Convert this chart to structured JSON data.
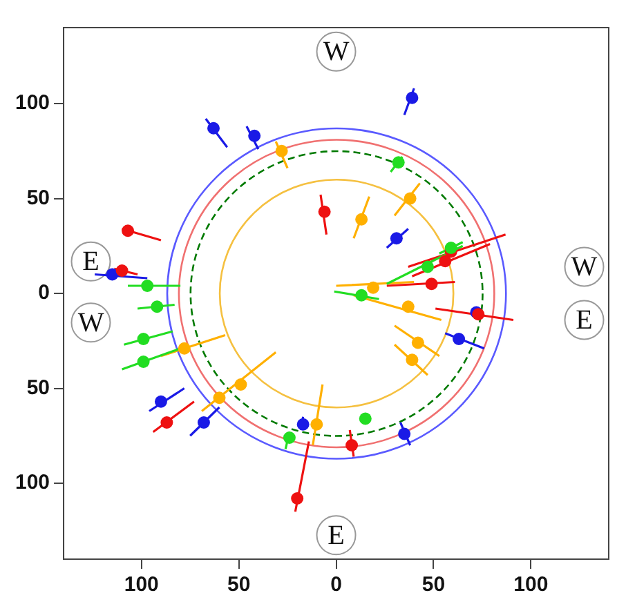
{
  "chart_data": {
    "type": "scatter",
    "xlim": [
      -140,
      140
    ],
    "ylim": [
      -140,
      140
    ],
    "xticks": [
      {
        "value": -100,
        "label": "100"
      },
      {
        "value": -50,
        "label": "50"
      },
      0,
      50,
      100
    ],
    "yticks": [
      {
        "value": -100,
        "label": "100"
      },
      {
        "value": -50,
        "label": "50"
      },
      0,
      50,
      100
    ],
    "grid": false,
    "legend": false,
    "marker": "circle",
    "annotations": [
      "W",
      "E",
      "W",
      "W",
      "E",
      "E"
    ],
    "series": [
      {
        "type": "line",
        "marker": "none",
        "color": "#1a1ae6",
        "line_style": "solid",
        "x": [
          -67,
          -56,
          null,
          -46,
          -40,
          null,
          40,
          35,
          null,
          37,
          26,
          null,
          -124,
          -97,
          null,
          56,
          76,
          null,
          33,
          38,
          null,
          -17,
          -18,
          null,
          -75,
          -60,
          null,
          -96,
          -78
        ],
        "values": [
          92,
          77,
          null,
          88,
          76,
          null,
          108,
          94,
          null,
          34,
          24,
          null,
          10,
          8,
          null,
          -21,
          -29,
          null,
          -68,
          -80,
          null,
          -65,
          -72,
          null,
          -75,
          -60,
          null,
          -62,
          -50
        ]
      },
      {
        "type": "line",
        "marker": "none",
        "color": "#ee1111",
        "line_style": "solid",
        "x": [
          -8,
          -5,
          null,
          -110,
          -90,
          null,
          -114,
          -102,
          null,
          37,
          87,
          null,
          39,
          79,
          null,
          26,
          61,
          null,
          51,
          91,
          null,
          7,
          9,
          null,
          -21,
          -14,
          null,
          -94,
          -73
        ],
        "values": [
          52,
          31,
          null,
          34,
          28,
          null,
          13,
          10,
          null,
          14,
          31,
          null,
          9,
          26,
          null,
          4,
          6,
          null,
          -8,
          -14,
          null,
          -72,
          -86,
          null,
          -115,
          -78,
          null,
          -73,
          -57
        ]
      },
      {
        "type": "line",
        "marker": "none",
        "color": "#ffb000",
        "line_style": "solid",
        "x": [
          -31,
          -25,
          null,
          43,
          30,
          null,
          17,
          9,
          null,
          0,
          40,
          null,
          9,
          54,
          null,
          30,
          53,
          null,
          30,
          47,
          null,
          -7,
          -12,
          null,
          -31,
          -69,
          null,
          -90,
          -57
        ],
        "values": [
          80,
          66,
          null,
          58,
          41,
          null,
          51,
          29,
          null,
          4,
          6,
          null,
          -1,
          -14,
          null,
          -17,
          -33,
          null,
          -27,
          -43,
          null,
          -48,
          -80,
          null,
          -31,
          -62,
          null,
          -33,
          -22
        ]
      },
      {
        "type": "line",
        "marker": "none",
        "color": "#22dd22",
        "line_style": "solid",
        "x": [
          34,
          28,
          null,
          53,
          65,
          null,
          26,
          65,
          null,
          -1,
          22,
          null,
          -107,
          -80,
          null,
          -102,
          -83,
          null,
          -109,
          -84,
          null,
          -110,
          -80,
          null,
          -24,
          -26
        ],
        "values": [
          72,
          64,
          null,
          21,
          27,
          null,
          5,
          25,
          null,
          1,
          -3,
          null,
          4,
          4,
          null,
          -8,
          -6,
          null,
          -27,
          -20,
          null,
          -40,
          -29,
          null,
          -73,
          -82
        ]
      },
      {
        "type": "scatter",
        "color": "#1a1ae6",
        "x": [
          -63,
          -42,
          39,
          31,
          -115,
          72,
          63,
          35,
          -17,
          -68,
          -90
        ],
        "values": [
          87,
          83,
          103,
          29,
          10,
          -10,
          -24,
          -74,
          -69,
          -68,
          -57
        ]
      },
      {
        "type": "scatter",
        "color": "#ee1111",
        "x": [
          -6,
          -107,
          -110,
          59,
          56,
          49,
          73,
          8,
          -20,
          -87
        ],
        "values": [
          43,
          33,
          12,
          22,
          17,
          5,
          -11,
          -80,
          -108,
          -68
        ]
      },
      {
        "type": "scatter",
        "color": "#ffb000",
        "x": [
          -28,
          38,
          13,
          19,
          37,
          42,
          39,
          -10,
          -49,
          -60,
          -78
        ],
        "values": [
          75,
          50,
          39,
          3,
          -7,
          -26,
          -35,
          -69,
          -48,
          -55,
          -29
        ]
      },
      {
        "type": "scatter",
        "color": "#22dd22",
        "x": [
          32,
          59,
          47,
          13,
          -97,
          -92,
          -99,
          -99,
          -24,
          15
        ],
        "values": [
          69,
          24,
          14,
          -1,
          4,
          -7,
          -24,
          -36,
          -76,
          -66
        ]
      }
    ]
  }
}
